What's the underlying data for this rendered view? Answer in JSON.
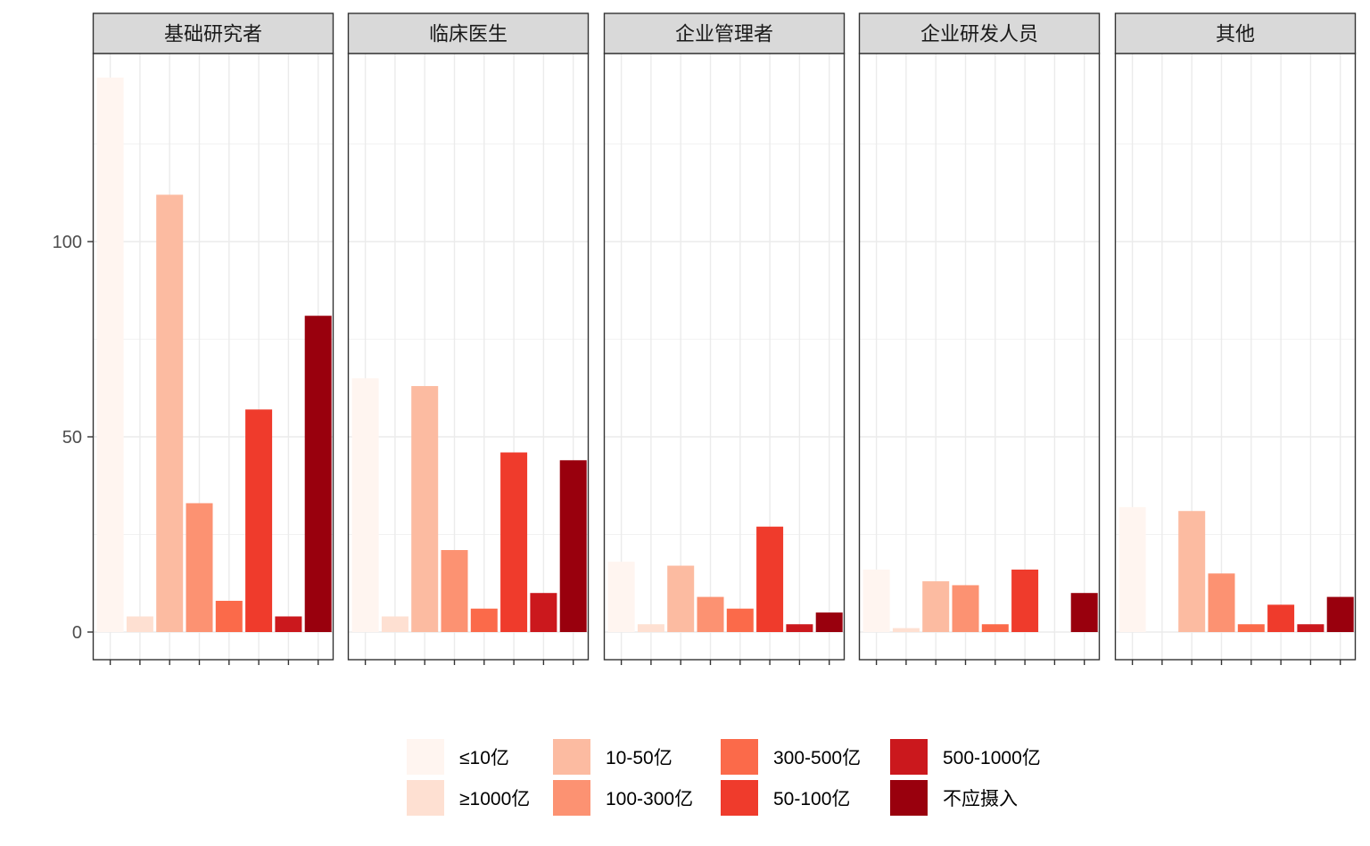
{
  "chart_data": {
    "type": "bar",
    "facets": [
      "基础研究者",
      "临床医生",
      "企业管理者",
      "企业研发人员",
      "其他"
    ],
    "categories": [
      "≤10亿",
      "≥1000亿",
      "10-50亿",
      "100-300亿",
      "300-500亿",
      "50-100亿",
      "500-1000亿",
      "不应摄入"
    ],
    "colors": [
      "#FFF5F0",
      "#FEE0D2",
      "#FCBBA1",
      "#FC9272",
      "#FB6A4A",
      "#EF3B2C",
      "#CB181D",
      "#99000D"
    ],
    "series": [
      {
        "facet": "基础研究者",
        "values": [
          142,
          4,
          112,
          33,
          8,
          57,
          4,
          81
        ]
      },
      {
        "facet": "临床医生",
        "values": [
          65,
          4,
          63,
          21,
          6,
          46,
          10,
          44
        ]
      },
      {
        "facet": "企业管理者",
        "values": [
          18,
          2,
          17,
          9,
          6,
          27,
          2,
          5
        ]
      },
      {
        "facet": "企业研发人员",
        "values": [
          16,
          1,
          13,
          12,
          2,
          16,
          0,
          10
        ]
      },
      {
        "facet": "其他",
        "values": [
          32,
          0,
          31,
          15,
          2,
          7,
          2,
          9
        ]
      }
    ],
    "yticks": [
      0,
      50,
      100
    ],
    "ylim": [
      0,
      148
    ],
    "grid": true,
    "legend_position": "bottom",
    "xlabel": "",
    "ylabel": ""
  }
}
